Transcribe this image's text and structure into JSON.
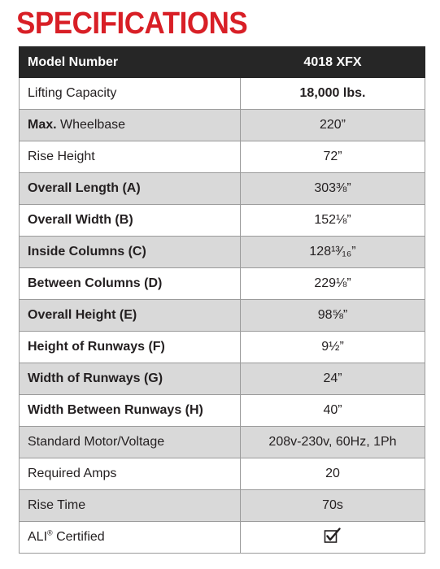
{
  "title": "SPECIFICATIONS",
  "header": {
    "label": "Model Number",
    "value": "4018 XFX"
  },
  "rows": [
    {
      "label_bold": "",
      "label": "Lifting Capacity",
      "value": "18,000 lbs.",
      "value_bold": true,
      "shade": false
    },
    {
      "label_bold": "Max.",
      "label": " Wheelbase",
      "value": "220”",
      "value_bold": false,
      "shade": true
    },
    {
      "label_bold": "",
      "label": "Rise Height",
      "value": "72”",
      "value_bold": false,
      "shade": false
    },
    {
      "label_bold": "Overall Length (A)",
      "label": "",
      "value": "303⅜”",
      "value_bold": false,
      "shade": true
    },
    {
      "label_bold": "Overall Width (B)",
      "label": "",
      "value": "152⅛”",
      "value_bold": false,
      "shade": false
    },
    {
      "label_bold": "Inside Columns (C)",
      "label": "",
      "value": "128¹³⁄₁₆”",
      "value_bold": false,
      "shade": true
    },
    {
      "label_bold": "Between Columns (D)",
      "label": "",
      "value": "229⅛”",
      "value_bold": false,
      "shade": false
    },
    {
      "label_bold": "Overall Height (E)",
      "label": "",
      "value": "98⅝”",
      "value_bold": false,
      "shade": true
    },
    {
      "label_bold": "Height of Runways (F)",
      "label": "",
      "value": "9½”",
      "value_bold": false,
      "shade": false
    },
    {
      "label_bold": "Width of Runways (G)",
      "label": "",
      "value": "24”",
      "value_bold": false,
      "shade": true
    },
    {
      "label_bold": "Width Between Runways (H)",
      "label": "",
      "value": "40”",
      "value_bold": false,
      "shade": false
    },
    {
      "label_bold": "",
      "label": "Standard Motor/Voltage",
      "value": "208v-230v, 60Hz, 1Ph",
      "value_bold": false,
      "shade": true
    },
    {
      "label_bold": "",
      "label": "Required Amps",
      "value": "20",
      "value_bold": false,
      "shade": false
    },
    {
      "label_bold": "",
      "label": "Rise Time",
      "value": "70s",
      "value_bold": false,
      "shade": true
    }
  ],
  "ali_row": {
    "label": "ALI",
    "registered": "®",
    "label_rest": " Certified",
    "icon": "checkbox-checked-icon"
  }
}
